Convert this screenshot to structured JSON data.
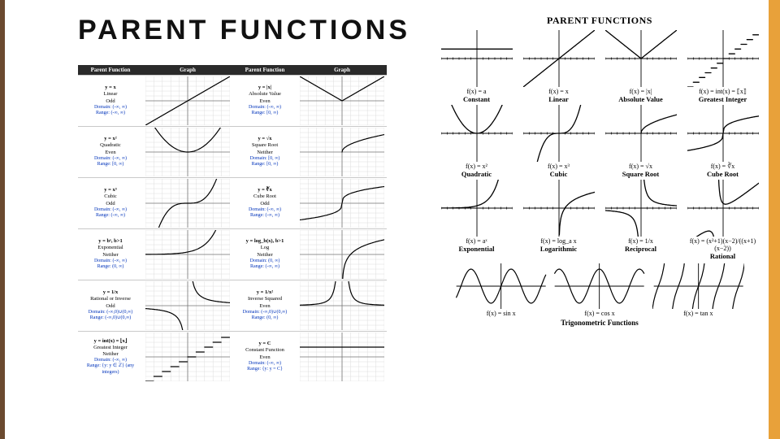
{
  "accent_left": "#6b4a2f",
  "accent_right": "#e8a13a",
  "title": {
    "text": "PARENT FUNCTIONS",
    "fontsize": 34
  },
  "left_table": {
    "headers": [
      "Parent Function",
      "Graph",
      "Parent Function",
      "Graph"
    ],
    "header_bg": "#2a2a2a",
    "header_fg": "#ffffff",
    "grid_color": "#d6d6d6",
    "axis_color": "#777777",
    "curve_color": "#000000",
    "xlim": [
      -5,
      5
    ],
    "ylim": [
      -5,
      5
    ],
    "rows": [
      {
        "l": {
          "eq": "y = x",
          "name": "Linear",
          "sym": "Odd",
          "domain": "(-∞, ∞)",
          "range": "(-∞, ∞)",
          "curve": "linear"
        },
        "r": {
          "eq": "y = |x|",
          "name": "Absolute Value",
          "sym": "Even",
          "domain": "(-∞, ∞)",
          "range": "[0, ∞)",
          "curve": "abs"
        }
      },
      {
        "l": {
          "eq": "y = x²",
          "name": "Quadratic",
          "sym": "Even",
          "domain": "(-∞, ∞)",
          "range": "[0, ∞)",
          "curve": "quad"
        },
        "r": {
          "eq": "y = √x",
          "name": "Square Root",
          "sym": "Neither",
          "domain": "[0, ∞)",
          "range": "[0, ∞)",
          "curve": "sqrt"
        }
      },
      {
        "l": {
          "eq": "y = x³",
          "name": "Cubic",
          "sym": "Odd",
          "domain": "(-∞, ∞)",
          "range": "(-∞, ∞)",
          "curve": "cubic"
        },
        "r": {
          "eq": "y = ∛x",
          "name": "Cube Root",
          "sym": "Odd",
          "domain": "(-∞, ∞)",
          "range": "(-∞, ∞)",
          "curve": "cbrt"
        }
      },
      {
        "l": {
          "eq": "y = bˣ, b>1",
          "name": "Exponential",
          "sym": "Neither",
          "domain": "(-∞, ∞)",
          "range": "(0, ∞)",
          "curve": "exp"
        },
        "r": {
          "eq": "y = log_b(x), b>1",
          "name": "Log",
          "sym": "Neither",
          "domain": "(0, ∞)",
          "range": "(-∞, ∞)",
          "curve": "log"
        }
      },
      {
        "l": {
          "eq": "y = 1/x",
          "name": "Rational or Inverse",
          "sym": "Odd",
          "domain": "(-∞,0)∪(0,∞)",
          "range": "(-∞,0)∪(0,∞)",
          "curve": "recip"
        },
        "r": {
          "eq": "y = 1/x²",
          "name": "Inverse Squared",
          "sym": "Even",
          "domain": "(-∞,0)∪(0,∞)",
          "range": "(0, ∞)",
          "curve": "recip2"
        }
      },
      {
        "l": {
          "eq": "y = int(x) = ⌊x⌋",
          "name": "Greatest Integer",
          "sym": "Neither",
          "domain": "(-∞, ∞)",
          "range": "{y: y ∈ ℤ} (any integers)",
          "curve": "floor"
        },
        "r": {
          "eq": "y = C",
          "name": "Constant Function",
          "sym": "Even",
          "domain": "(-∞, ∞)",
          "range": "{y: y = C}",
          "curve": "const"
        }
      }
    ]
  },
  "right_panel": {
    "title": "PARENT FUNCTIONS",
    "axis_color": "#000000",
    "tick_color": "#000000",
    "curve_color": "#000000",
    "xlim": [
      -6,
      6
    ],
    "ylim": [
      -6,
      6
    ],
    "cells": [
      {
        "eq": "f(x) = a",
        "name": "Constant",
        "curve": "const"
      },
      {
        "eq": "f(x) = x",
        "name": "Linear",
        "curve": "linear"
      },
      {
        "eq": "f(x) = |x|",
        "name": "Absolute Value",
        "curve": "abs"
      },
      {
        "eq": "f(x) = int(x) = ⟦x⟧",
        "name": "Greatest Integer",
        "curve": "floor"
      },
      {
        "eq": "f(x) = x²",
        "name": "Quadratic",
        "curve": "quad"
      },
      {
        "eq": "f(x) = x³",
        "name": "Cubic",
        "curve": "cubic"
      },
      {
        "eq": "f(x) = √x",
        "name": "Square Root",
        "curve": "sqrt"
      },
      {
        "eq": "f(x) = ∛x",
        "name": "Cube Root",
        "curve": "cbrt"
      },
      {
        "eq": "f(x) = aˣ",
        "name": "Exponential",
        "curve": "exp"
      },
      {
        "eq": "f(x) = log_a x",
        "name": "Logarithmic",
        "curve": "log"
      },
      {
        "eq": "f(x) = 1/x",
        "name": "Reciprocal",
        "curve": "recip"
      },
      {
        "eq": "f(x) = (x²+1)(x−2)/((x+1)(x−2))",
        "name": "Rational",
        "curve": "rational"
      }
    ],
    "trig_subtitle": "Trigonometric Functions",
    "trig": [
      {
        "eq": "f(x) = sin x",
        "curve": "sin"
      },
      {
        "eq": "f(x) = cos x",
        "curve": "cos"
      },
      {
        "eq": "f(x) = tan x",
        "curve": "tan"
      }
    ]
  }
}
